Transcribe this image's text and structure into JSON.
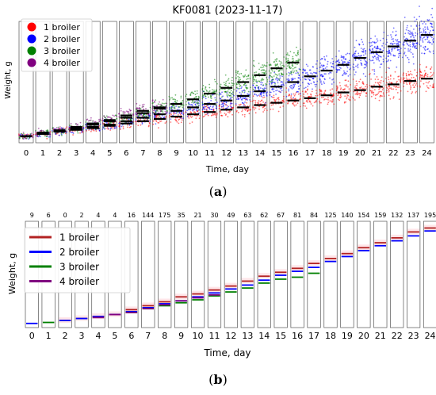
{
  "panel_labels": {
    "a": "a",
    "b": "b"
  },
  "chart_data": [
    {
      "type": "scatter",
      "title": "KF0081 (2023-11-17)",
      "xlabel": "Time, day",
      "ylabel": "Weight, g",
      "x_ticks": [
        "0",
        "1",
        "2",
        "3",
        "4",
        "5",
        "6",
        "7",
        "8",
        "9",
        "10",
        "11",
        "12",
        "13",
        "14",
        "15",
        "16",
        "17",
        "18",
        "19",
        "20",
        "21",
        "22",
        "23",
        "24"
      ],
      "ylim": [
        0,
        100
      ],
      "legend": {
        "placement": "top-left"
      },
      "series": [
        {
          "name": "1 broiler",
          "color": "#ff0000",
          "values": [
            3,
            5,
            7,
            8.5,
            10,
            12,
            14,
            16,
            18,
            20,
            22,
            24,
            26,
            28,
            30,
            32,
            34,
            36,
            38.5,
            41,
            43,
            46,
            48,
            51,
            53
          ]
        },
        {
          "name": "2 broiler",
          "color": "#0000ff",
          "values": [
            3,
            5,
            7,
            9,
            11,
            13,
            16,
            19,
            22,
            25,
            28,
            31,
            34,
            38,
            42,
            46,
            50,
            55,
            60,
            65,
            71,
            76,
            81,
            86,
            91
          ]
        },
        {
          "name": "3 broiler",
          "color": "#008000",
          "values": [
            3,
            6,
            8,
            10,
            13,
            16,
            19,
            23,
            27,
            31,
            35,
            40,
            45,
            50,
            56,
            62,
            67,
            null,
            null,
            null,
            null,
            null,
            null,
            null,
            null
          ]
        },
        {
          "name": "4 broiler",
          "color": "#800080",
          "values": [
            3,
            6,
            8,
            11,
            14,
            17,
            21,
            25,
            28,
            null,
            null,
            null,
            null,
            null,
            null,
            null,
            null,
            null,
            null,
            null,
            null,
            null,
            null,
            null,
            null
          ]
        }
      ]
    },
    {
      "type": "line",
      "xlabel": "Time, day",
      "ylabel": "Weight, g",
      "x_ticks": [
        "0",
        "1",
        "2",
        "3",
        "4",
        "5",
        "6",
        "7",
        "8",
        "9",
        "10",
        "11",
        "12",
        "13",
        "14",
        "15",
        "16",
        "17",
        "18",
        "19",
        "20",
        "21",
        "22",
        "23",
        "24"
      ],
      "top_counts": [
        "9",
        "6",
        "0",
        "2",
        "4",
        "4",
        "16",
        "144",
        "175",
        "35",
        "21",
        "30",
        "49",
        "63",
        "62",
        "67",
        "81",
        "84",
        "125",
        "140",
        "154",
        "159",
        "132",
        "137",
        "195"
      ],
      "ylim": [
        0,
        100
      ],
      "legend": {
        "placement": "top-left"
      },
      "series": [
        {
          "name": "1 broiler",
          "color": "#b22222",
          "values": [
            null,
            null,
            4,
            6,
            8,
            10,
            15,
            19,
            23,
            28,
            31,
            35,
            39,
            44,
            49,
            53,
            57,
            62,
            67,
            72,
            78,
            83,
            88,
            94,
            98
          ]
        },
        {
          "name": "2 broiler",
          "color": "#0000ff",
          "values": [
            1,
            null,
            4,
            6,
            8,
            10,
            13,
            17,
            21,
            24,
            28,
            32,
            36,
            40,
            45,
            50,
            54,
            58,
            64,
            69,
            75,
            80,
            85,
            90,
            95
          ]
        },
        {
          "name": "3 broiler",
          "color": "#008000",
          "values": [
            null,
            2,
            null,
            null,
            null,
            null,
            12,
            16,
            19,
            22,
            25,
            29,
            33,
            37,
            42,
            46,
            48,
            52,
            null,
            null,
            null,
            null,
            null,
            null,
            null
          ]
        },
        {
          "name": "4 broiler",
          "color": "#800080",
          "values": [
            null,
            null,
            null,
            null,
            7,
            10,
            12,
            16,
            20,
            24,
            27,
            30,
            null,
            null,
            null,
            null,
            null,
            null,
            null,
            null,
            null,
            null,
            null,
            null,
            null
          ]
        }
      ]
    }
  ]
}
